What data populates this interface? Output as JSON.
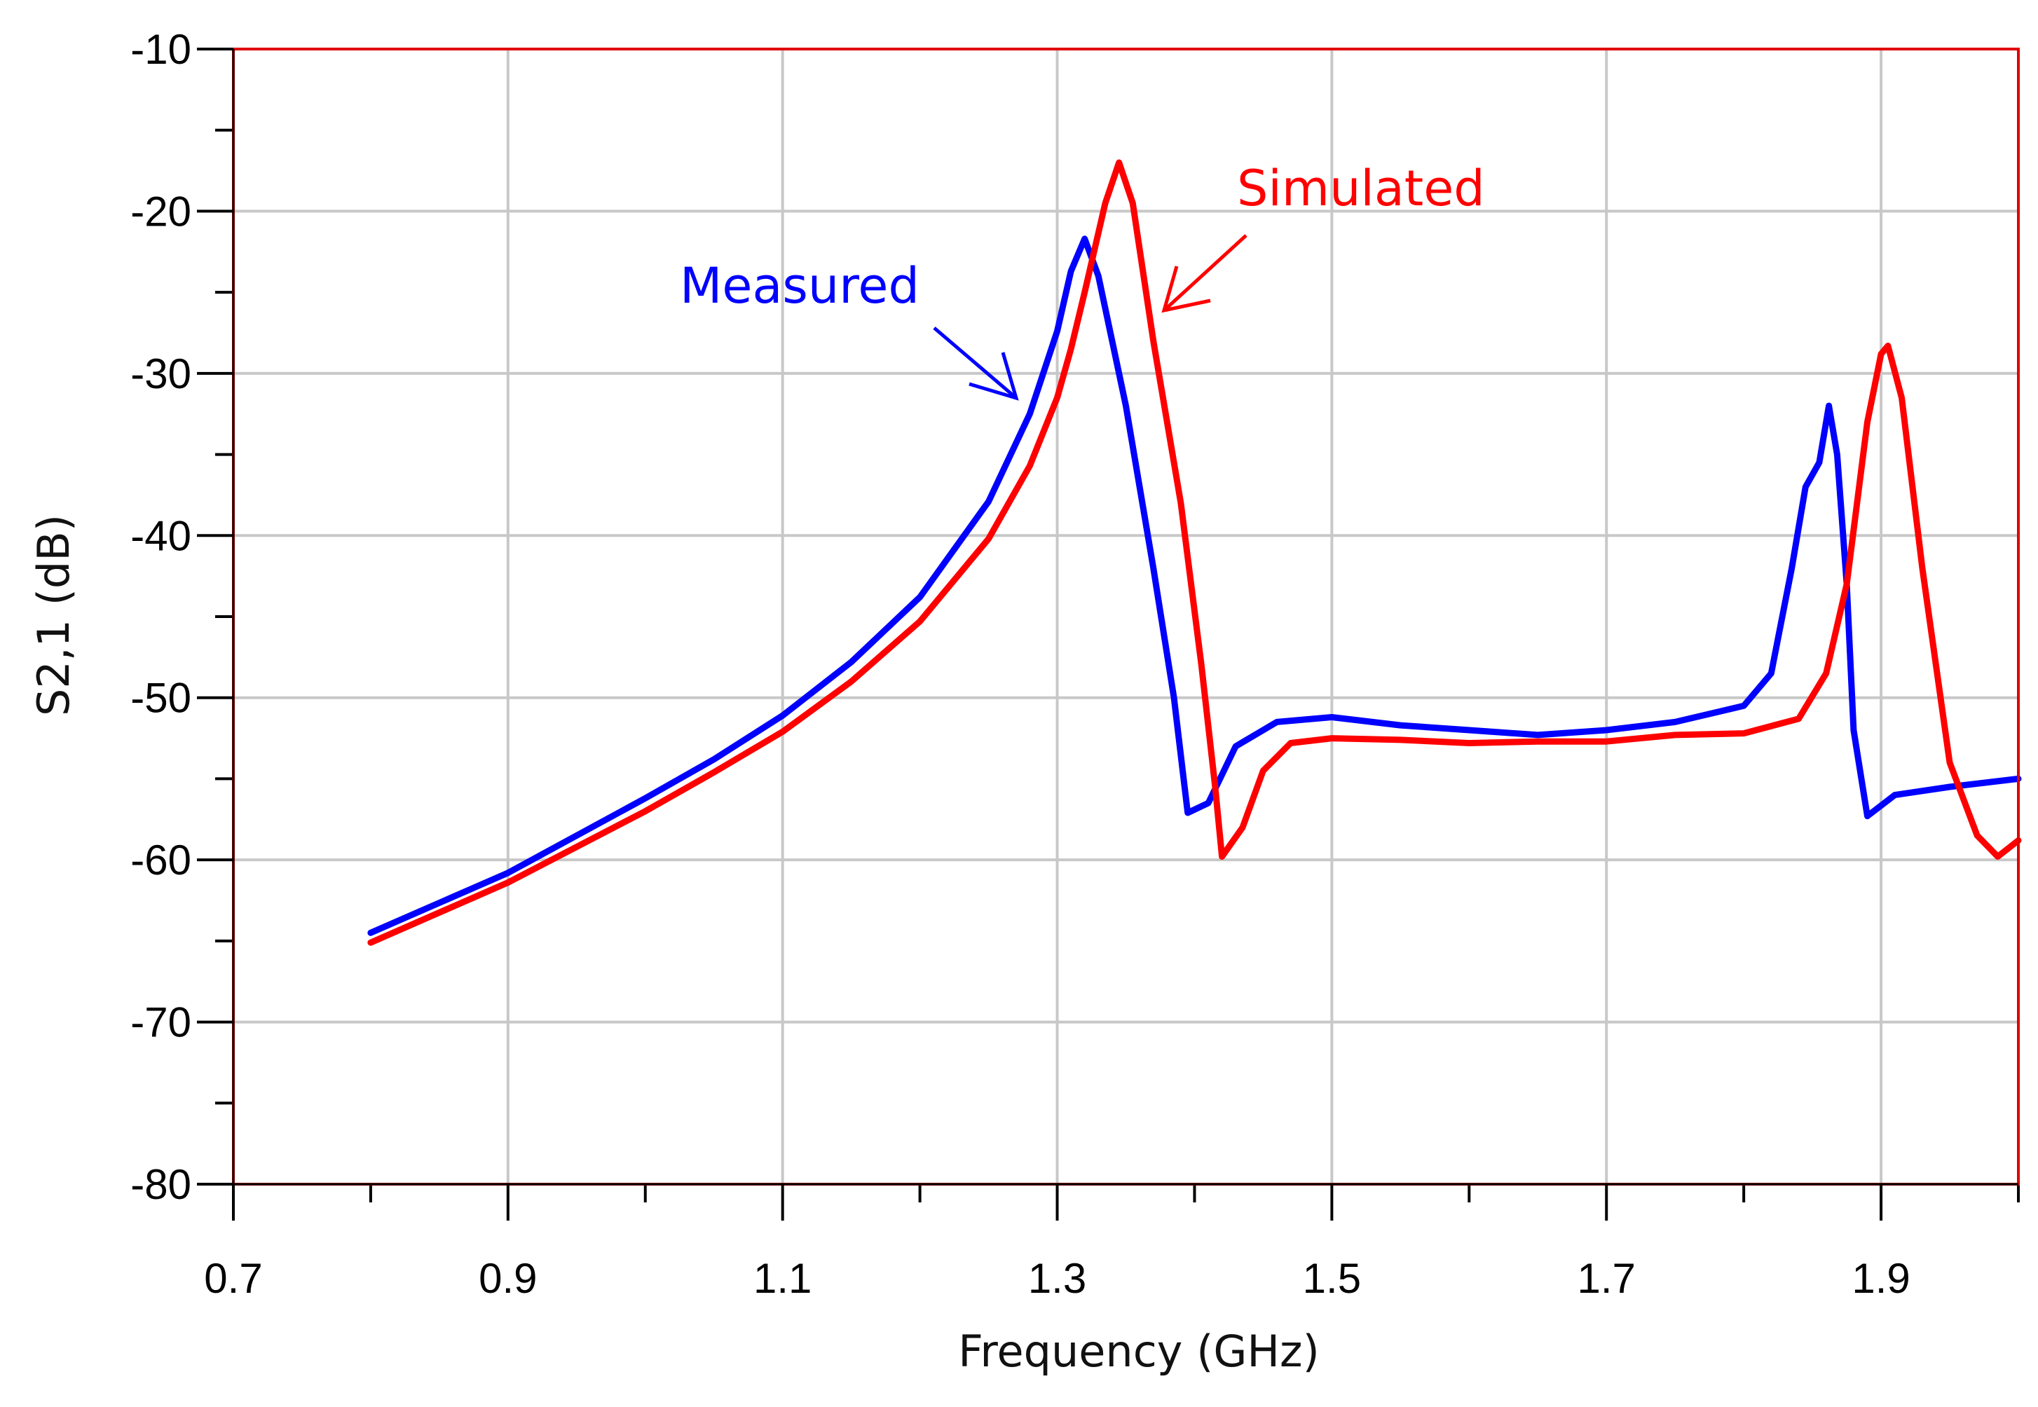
{
  "chart_data": {
    "type": "line",
    "xlabel": "Frequency (GHz)",
    "ylabel": "S2,1 (dB)",
    "xlim": [
      0.7,
      2.0
    ],
    "ylim": [
      -80,
      -10
    ],
    "grid": true,
    "x_ticks": [
      {
        "value": 0.7,
        "label": "0.7"
      },
      {
        "value": 0.9,
        "label": "0.9"
      },
      {
        "value": 1.1,
        "label": "1.1"
      },
      {
        "value": 1.3,
        "label": "1.3"
      },
      {
        "value": 1.5,
        "label": "1.5"
      },
      {
        "value": 1.7,
        "label": "1.7"
      },
      {
        "value": 1.9,
        "label": "1.9"
      }
    ],
    "y_ticks": [
      {
        "value": -10,
        "label": "-10"
      },
      {
        "value": -20,
        "label": "-20"
      },
      {
        "value": -30,
        "label": "-30"
      },
      {
        "value": -40,
        "label": "-40"
      },
      {
        "value": -50,
        "label": "-50"
      },
      {
        "value": -60,
        "label": "-60"
      },
      {
        "value": -70,
        "label": "-70"
      },
      {
        "value": -80,
        "label": "-80"
      }
    ],
    "series": [
      {
        "name": "Measured",
        "color": "#0000ff",
        "x": [
          0.8,
          0.9,
          1.0,
          1.05,
          1.1,
          1.15,
          1.2,
          1.25,
          1.28,
          1.3,
          1.31,
          1.32,
          1.33,
          1.35,
          1.37,
          1.385,
          1.395,
          1.41,
          1.43,
          1.46,
          1.5,
          1.55,
          1.6,
          1.65,
          1.7,
          1.75,
          1.8,
          1.82,
          1.835,
          1.845,
          1.855,
          1.862,
          1.868,
          1.875,
          1.88,
          1.89,
          1.91,
          1.95,
          2.0
        ],
        "y": [
          -64.5,
          -60.8,
          -56.2,
          -53.8,
          -51.1,
          -47.8,
          -43.8,
          -37.9,
          -32.5,
          -27.4,
          -23.7,
          -21.7,
          -24.0,
          -32.0,
          -42.0,
          -50.0,
          -57.1,
          -56.5,
          -53.0,
          -51.5,
          -51.2,
          -51.7,
          -52.0,
          -52.3,
          -52.0,
          -51.5,
          -50.5,
          -48.5,
          -42.0,
          -37.0,
          -35.5,
          -32.0,
          -35.0,
          -43.0,
          -52.0,
          -57.3,
          -56.0,
          -55.5,
          -55.0
        ]
      },
      {
        "name": "Simulated",
        "color": "#ff0000",
        "x": [
          0.8,
          0.9,
          1.0,
          1.05,
          1.1,
          1.15,
          1.2,
          1.25,
          1.28,
          1.3,
          1.31,
          1.32,
          1.335,
          1.345,
          1.355,
          1.37,
          1.39,
          1.405,
          1.415,
          1.42,
          1.435,
          1.45,
          1.47,
          1.5,
          1.55,
          1.6,
          1.65,
          1.7,
          1.75,
          1.8,
          1.84,
          1.86,
          1.875,
          1.89,
          1.9,
          1.905,
          1.915,
          1.93,
          1.95,
          1.97,
          1.985,
          2.0
        ],
        "y": [
          -65.1,
          -61.4,
          -57.0,
          -54.6,
          -52.1,
          -49.0,
          -45.3,
          -40.2,
          -35.7,
          -31.5,
          -28.5,
          -25.0,
          -19.5,
          -17.0,
          -19.5,
          -28.0,
          -38.0,
          -48.0,
          -55.5,
          -59.8,
          -58.0,
          -54.5,
          -52.8,
          -52.5,
          -52.6,
          -52.8,
          -52.7,
          -52.7,
          -52.3,
          -52.2,
          -51.3,
          -48.5,
          -43.0,
          -33.0,
          -28.8,
          -28.3,
          -31.5,
          -42.0,
          -54.0,
          -58.5,
          -59.8,
          -58.8
        ]
      }
    ],
    "annotations": [
      {
        "text": "Measured",
        "color": "#0000ff",
        "points_to": {
          "x": 1.27,
          "y": -31.5
        }
      },
      {
        "text": "Simulated",
        "color": "#ff0000",
        "points_to": {
          "x": 1.365,
          "y": -26.0
        }
      }
    ]
  }
}
